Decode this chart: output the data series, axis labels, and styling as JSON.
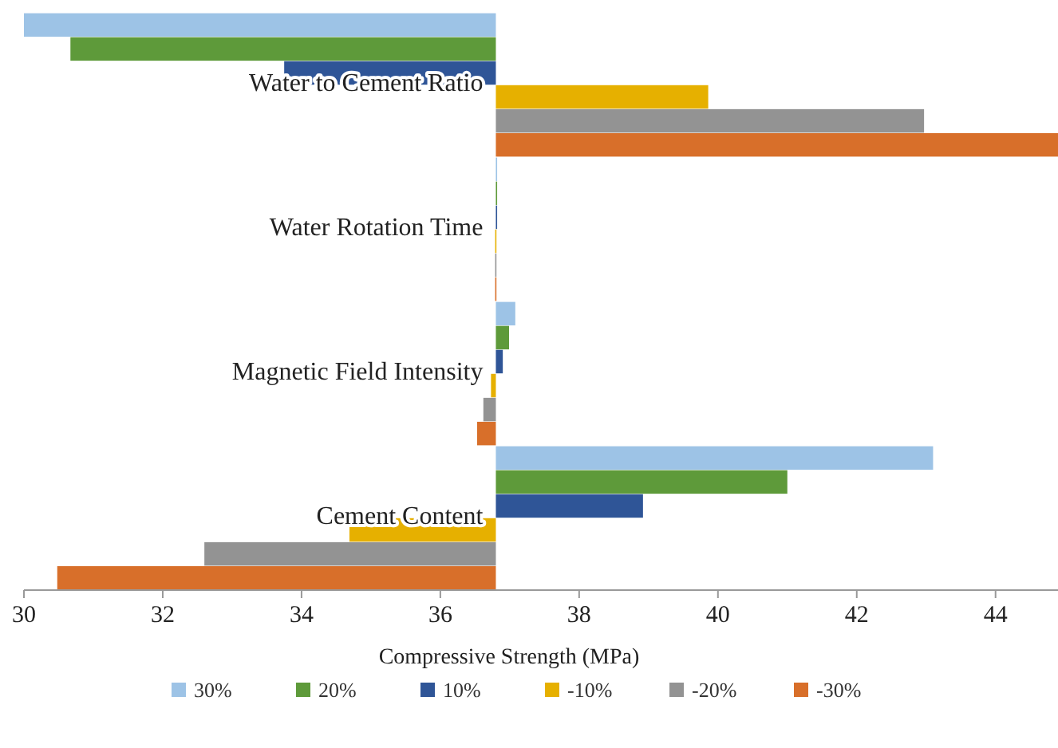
{
  "chart_data": {
    "type": "bar",
    "orientation": "horizontal",
    "xlabel": "Compressive Strength (MPa)",
    "categories": [
      "Water to Cement Ratio",
      "Water Rotation Time",
      "Magnetic Field Intensity",
      "Cement Content"
    ],
    "series": [
      {
        "name": "30%",
        "color": "#9dc3e6",
        "base": [
          36.8,
          36.8,
          36.8,
          36.8
        ],
        "values": [
          -6.8,
          0.01,
          0.28,
          6.3
        ]
      },
      {
        "name": "20%",
        "color": "#5e9a3a",
        "base": [
          36.8,
          36.8,
          36.8,
          36.8
        ],
        "values": [
          -6.13,
          0.01,
          0.19,
          4.2
        ]
      },
      {
        "name": "10%",
        "color": "#2f5597",
        "base": [
          36.8,
          36.8,
          36.8,
          36.8
        ],
        "values": [
          -3.05,
          0.01,
          0.1,
          2.12
        ]
      },
      {
        "name": "-10%",
        "color": "#e6b000",
        "base": [
          36.8,
          36.8,
          36.8,
          36.8
        ],
        "values": [
          3.06,
          -0.01,
          -0.07,
          -2.11
        ]
      },
      {
        "name": "-20%",
        "color": "#939393",
        "base": [
          36.8,
          36.8,
          36.8,
          36.8
        ],
        "values": [
          6.17,
          -0.01,
          -0.18,
          -4.2
        ]
      },
      {
        "name": "-30%",
        "color": "#d86f2a",
        "base": [
          36.8,
          36.8,
          36.8,
          36.8
        ],
        "values": [
          8.1,
          -0.01,
          -0.27,
          -6.32
        ]
      }
    ],
    "xlim": [
      30,
      44.9
    ],
    "xticks": [
      30,
      32,
      34,
      36,
      38,
      40,
      42,
      44
    ],
    "legend": "bottom",
    "grid": false
  }
}
